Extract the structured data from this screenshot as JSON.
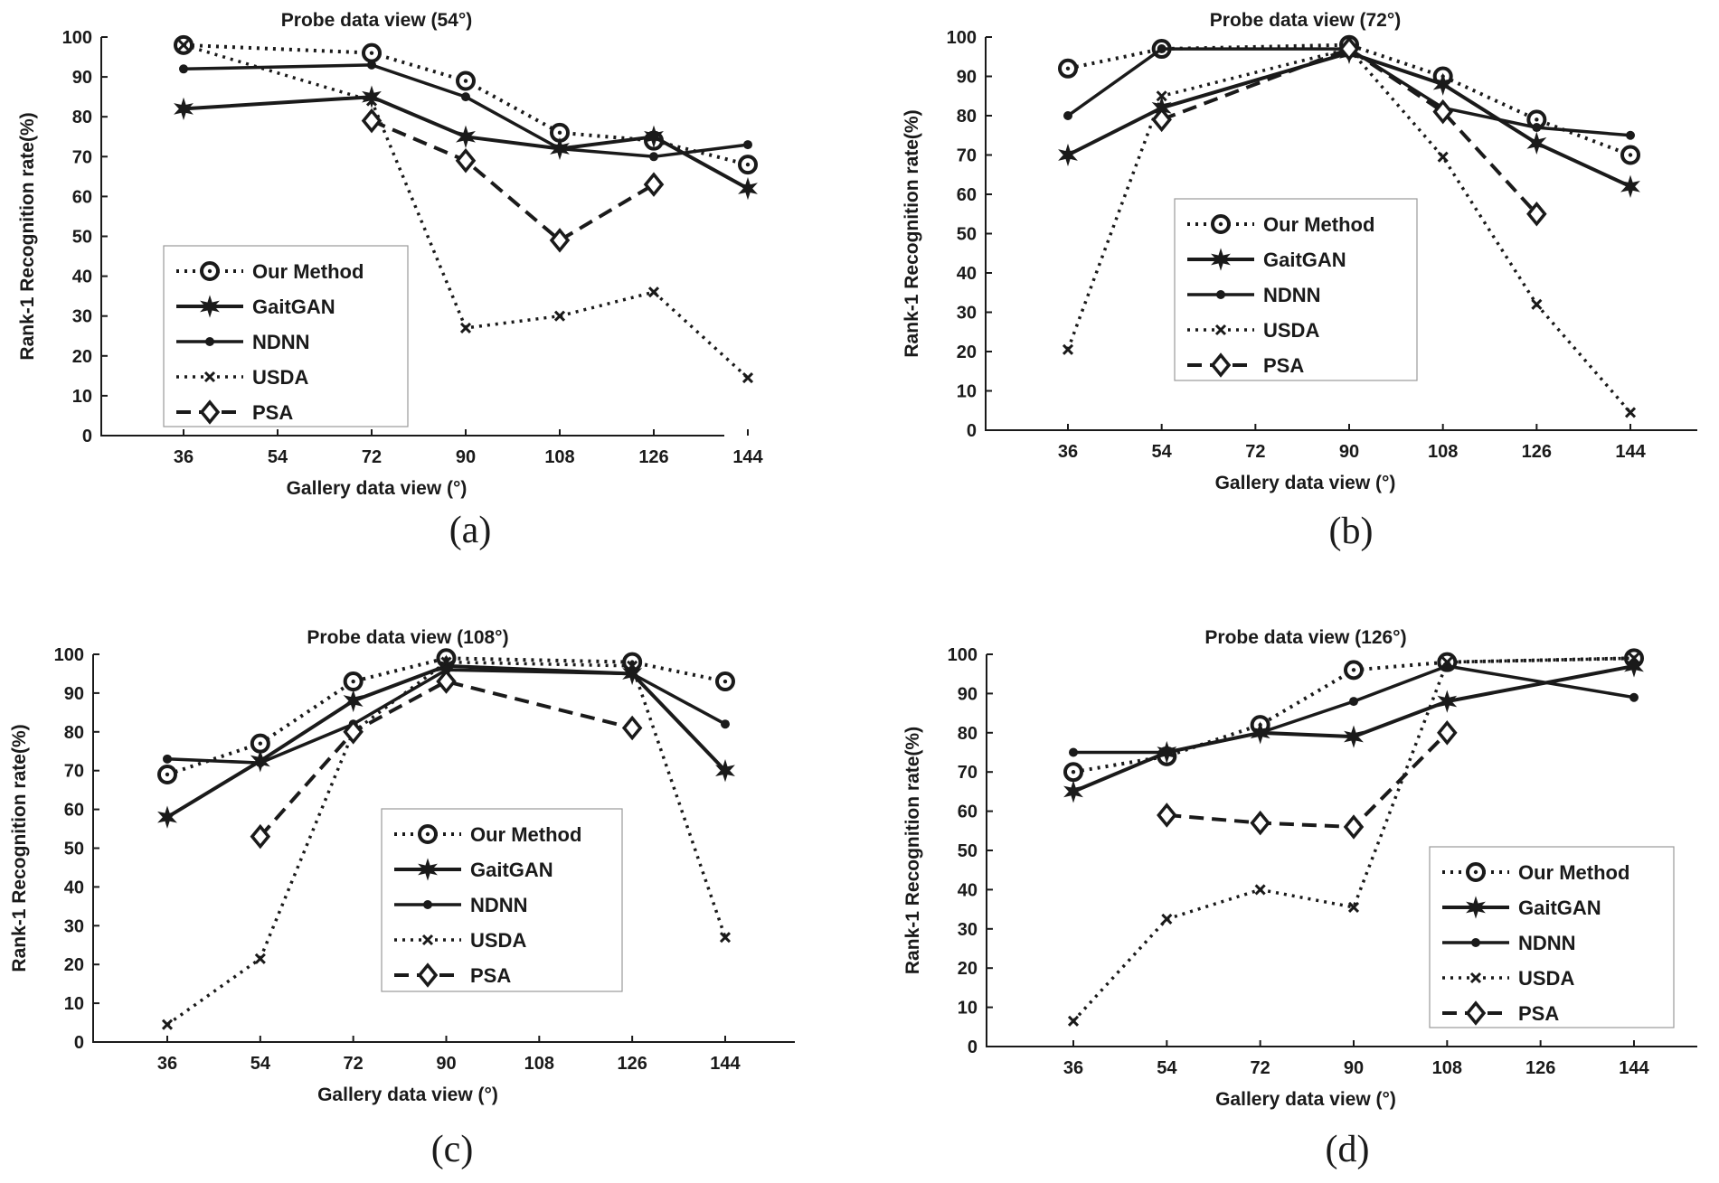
{
  "chart_data": [
    {
      "type": "line",
      "panel_label": "(a)",
      "title": "Probe data view (54°)",
      "xlabel": "Gallery data view (°)",
      "ylabel": "Rank-1 Recognition rate(%)",
      "categories": [
        "36",
        "54",
        "72",
        "90",
        "108",
        "126",
        "144"
      ],
      "ylim": [
        0,
        100
      ],
      "yticks": [
        "0",
        "10",
        "20",
        "30",
        "40",
        "50",
        "60",
        "70",
        "80",
        "90",
        "100"
      ],
      "legend_position": "lower-left",
      "series": [
        {
          "name": "Our Method",
          "x": [
            36,
            72,
            90,
            108,
            126,
            144
          ],
          "values": [
            98,
            96,
            89,
            76,
            74,
            68
          ]
        },
        {
          "name": "GaitGAN",
          "x": [
            36,
            72,
            90,
            108,
            126,
            144
          ],
          "values": [
            82,
            85,
            75,
            72,
            75,
            62
          ]
        },
        {
          "name": "NDNN",
          "x": [
            36,
            72,
            90,
            108,
            126,
            144
          ],
          "values": [
            92,
            93,
            85,
            72,
            70,
            73
          ]
        },
        {
          "name": "USDA",
          "x": [
            36,
            72,
            90,
            108,
            126,
            144
          ],
          "values": [
            98,
            84,
            27,
            30,
            36,
            14.5
          ]
        },
        {
          "name": "PSA",
          "x": [
            72,
            90,
            108,
            126
          ],
          "values": [
            79,
            69,
            49,
            63
          ]
        }
      ]
    },
    {
      "type": "line",
      "panel_label": "(b)",
      "title": "Probe data view (72°)",
      "xlabel": "Gallery data view (°)",
      "ylabel": "Rank-1 Recognition rate(%)",
      "categories": [
        "36",
        "54",
        "72",
        "90",
        "108",
        "126",
        "144"
      ],
      "ylim": [
        0,
        100
      ],
      "yticks": [
        "0",
        "10",
        "20",
        "30",
        "40",
        "50",
        "60",
        "70",
        "80",
        "90",
        "100"
      ],
      "legend_position": "center-left",
      "series": [
        {
          "name": "Our Method",
          "x": [
            36,
            54,
            90,
            108,
            126,
            144
          ],
          "values": [
            92,
            97,
            98,
            90,
            79,
            70
          ]
        },
        {
          "name": "GaitGAN",
          "x": [
            36,
            54,
            90,
            108,
            126,
            144
          ],
          "values": [
            70,
            82,
            96,
            88,
            73,
            62
          ]
        },
        {
          "name": "NDNN",
          "x": [
            36,
            54,
            90,
            108,
            126,
            144
          ],
          "values": [
            80,
            97,
            97,
            82,
            77,
            75
          ]
        },
        {
          "name": "USDA",
          "x": [
            36,
            54,
            90,
            108,
            126,
            144
          ],
          "values": [
            20.5,
            85,
            97,
            69.5,
            32,
            4.5
          ]
        },
        {
          "name": "PSA",
          "x": [
            54,
            90,
            108,
            126
          ],
          "values": [
            79,
            97,
            81,
            55
          ]
        }
      ]
    },
    {
      "type": "line",
      "panel_label": "(c)",
      "title": "Probe data view (108°)",
      "xlabel": "Gallery data view (°)",
      "ylabel": "Rank-1 Recognition rate(%)",
      "categories": [
        "36",
        "54",
        "72",
        "90",
        "108",
        "126",
        "144"
      ],
      "ylim": [
        0,
        100
      ],
      "yticks": [
        "0",
        "10",
        "20",
        "30",
        "40",
        "50",
        "60",
        "70",
        "80",
        "90",
        "100"
      ],
      "legend_position": "lower-right",
      "series": [
        {
          "name": "Our Method",
          "x": [
            36,
            54,
            72,
            90,
            126,
            144
          ],
          "values": [
            69,
            77,
            93,
            99,
            98,
            93
          ]
        },
        {
          "name": "GaitGAN",
          "x": [
            36,
            54,
            72,
            90,
            126,
            144
          ],
          "values": [
            58,
            72.5,
            88,
            97,
            95,
            70
          ]
        },
        {
          "name": "NDNN",
          "x": [
            36,
            54,
            72,
            90,
            126,
            144
          ],
          "values": [
            73,
            72,
            82,
            96,
            95,
            82
          ]
        },
        {
          "name": "USDA",
          "x": [
            36,
            54,
            72,
            90,
            126,
            144
          ],
          "values": [
            4.5,
            21.5,
            80,
            98,
            97,
            27
          ]
        },
        {
          "name": "PSA",
          "x": [
            54,
            72,
            90,
            126
          ],
          "values": [
            53,
            80,
            93,
            81
          ]
        }
      ]
    },
    {
      "type": "line",
      "panel_label": "(d)",
      "title": "Probe data view (126°)",
      "xlabel": "Gallery data view (°)",
      "ylabel": "Rank-1 Recognition rate(%)",
      "categories": [
        "36",
        "54",
        "72",
        "90",
        "108",
        "126",
        "144"
      ],
      "ylim": [
        0,
        100
      ],
      "yticks": [
        "0",
        "10",
        "20",
        "30",
        "40",
        "50",
        "60",
        "70",
        "80",
        "90",
        "100"
      ],
      "legend_position": "lower-right",
      "series": [
        {
          "name": "Our Method",
          "x": [
            36,
            54,
            72,
            90,
            108,
            144
          ],
          "values": [
            70,
            74,
            82,
            96,
            98,
            99
          ]
        },
        {
          "name": "GaitGAN",
          "x": [
            36,
            54,
            72,
            90,
            108,
            144
          ],
          "values": [
            65,
            75,
            80,
            79,
            88,
            97
          ]
        },
        {
          "name": "NDNN",
          "x": [
            36,
            54,
            72,
            90,
            108,
            144
          ],
          "values": [
            75,
            75,
            80,
            88,
            97,
            89
          ]
        },
        {
          "name": "USDA",
          "x": [
            36,
            54,
            72,
            90,
            108,
            144
          ],
          "values": [
            6.5,
            32.5,
            40,
            35.5,
            98,
            99
          ]
        },
        {
          "name": "PSA",
          "x": [
            54,
            72,
            90,
            108
          ],
          "values": [
            59,
            57,
            56,
            80
          ]
        }
      ]
    }
  ]
}
